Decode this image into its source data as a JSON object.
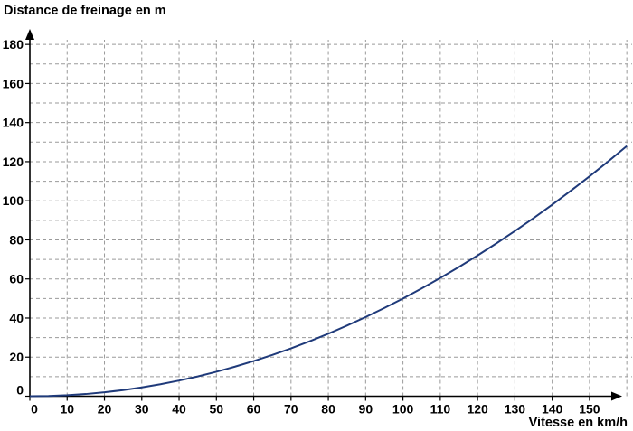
{
  "chart_data": {
    "type": "line",
    "ylabel": "Distance de freinage en m",
    "xlabel": "Vitesse en km/h",
    "xlim": [
      0,
      160
    ],
    "ylim": [
      0,
      190
    ],
    "x_ticks": [
      0,
      10,
      20,
      30,
      40,
      50,
      60,
      70,
      80,
      90,
      100,
      110,
      120,
      130,
      140,
      150
    ],
    "y_ticks": [
      0,
      20,
      40,
      60,
      80,
      100,
      120,
      140,
      160,
      180
    ],
    "x_grid_step": 10,
    "y_grid_step": 10,
    "grid": true,
    "series": [
      {
        "color": "#1f3a7a",
        "x": [
          0,
          5,
          10,
          15,
          20,
          25,
          30,
          35,
          40,
          45,
          50,
          55,
          60,
          65,
          70,
          75,
          80,
          85,
          90,
          95,
          100,
          105,
          110,
          115,
          120,
          125,
          130,
          135,
          140,
          145,
          150,
          155,
          160
        ],
        "y": [
          0,
          0.13,
          0.5,
          1.13,
          2,
          3.13,
          4.5,
          6.13,
          8,
          10.13,
          12.5,
          15.13,
          18,
          21.13,
          24.5,
          28.13,
          32,
          36.13,
          40.5,
          45.13,
          50,
          55.13,
          60.5,
          66.13,
          72,
          78.13,
          84.5,
          91.13,
          98,
          105.13,
          112.5,
          120.13,
          128
        ]
      }
    ]
  }
}
